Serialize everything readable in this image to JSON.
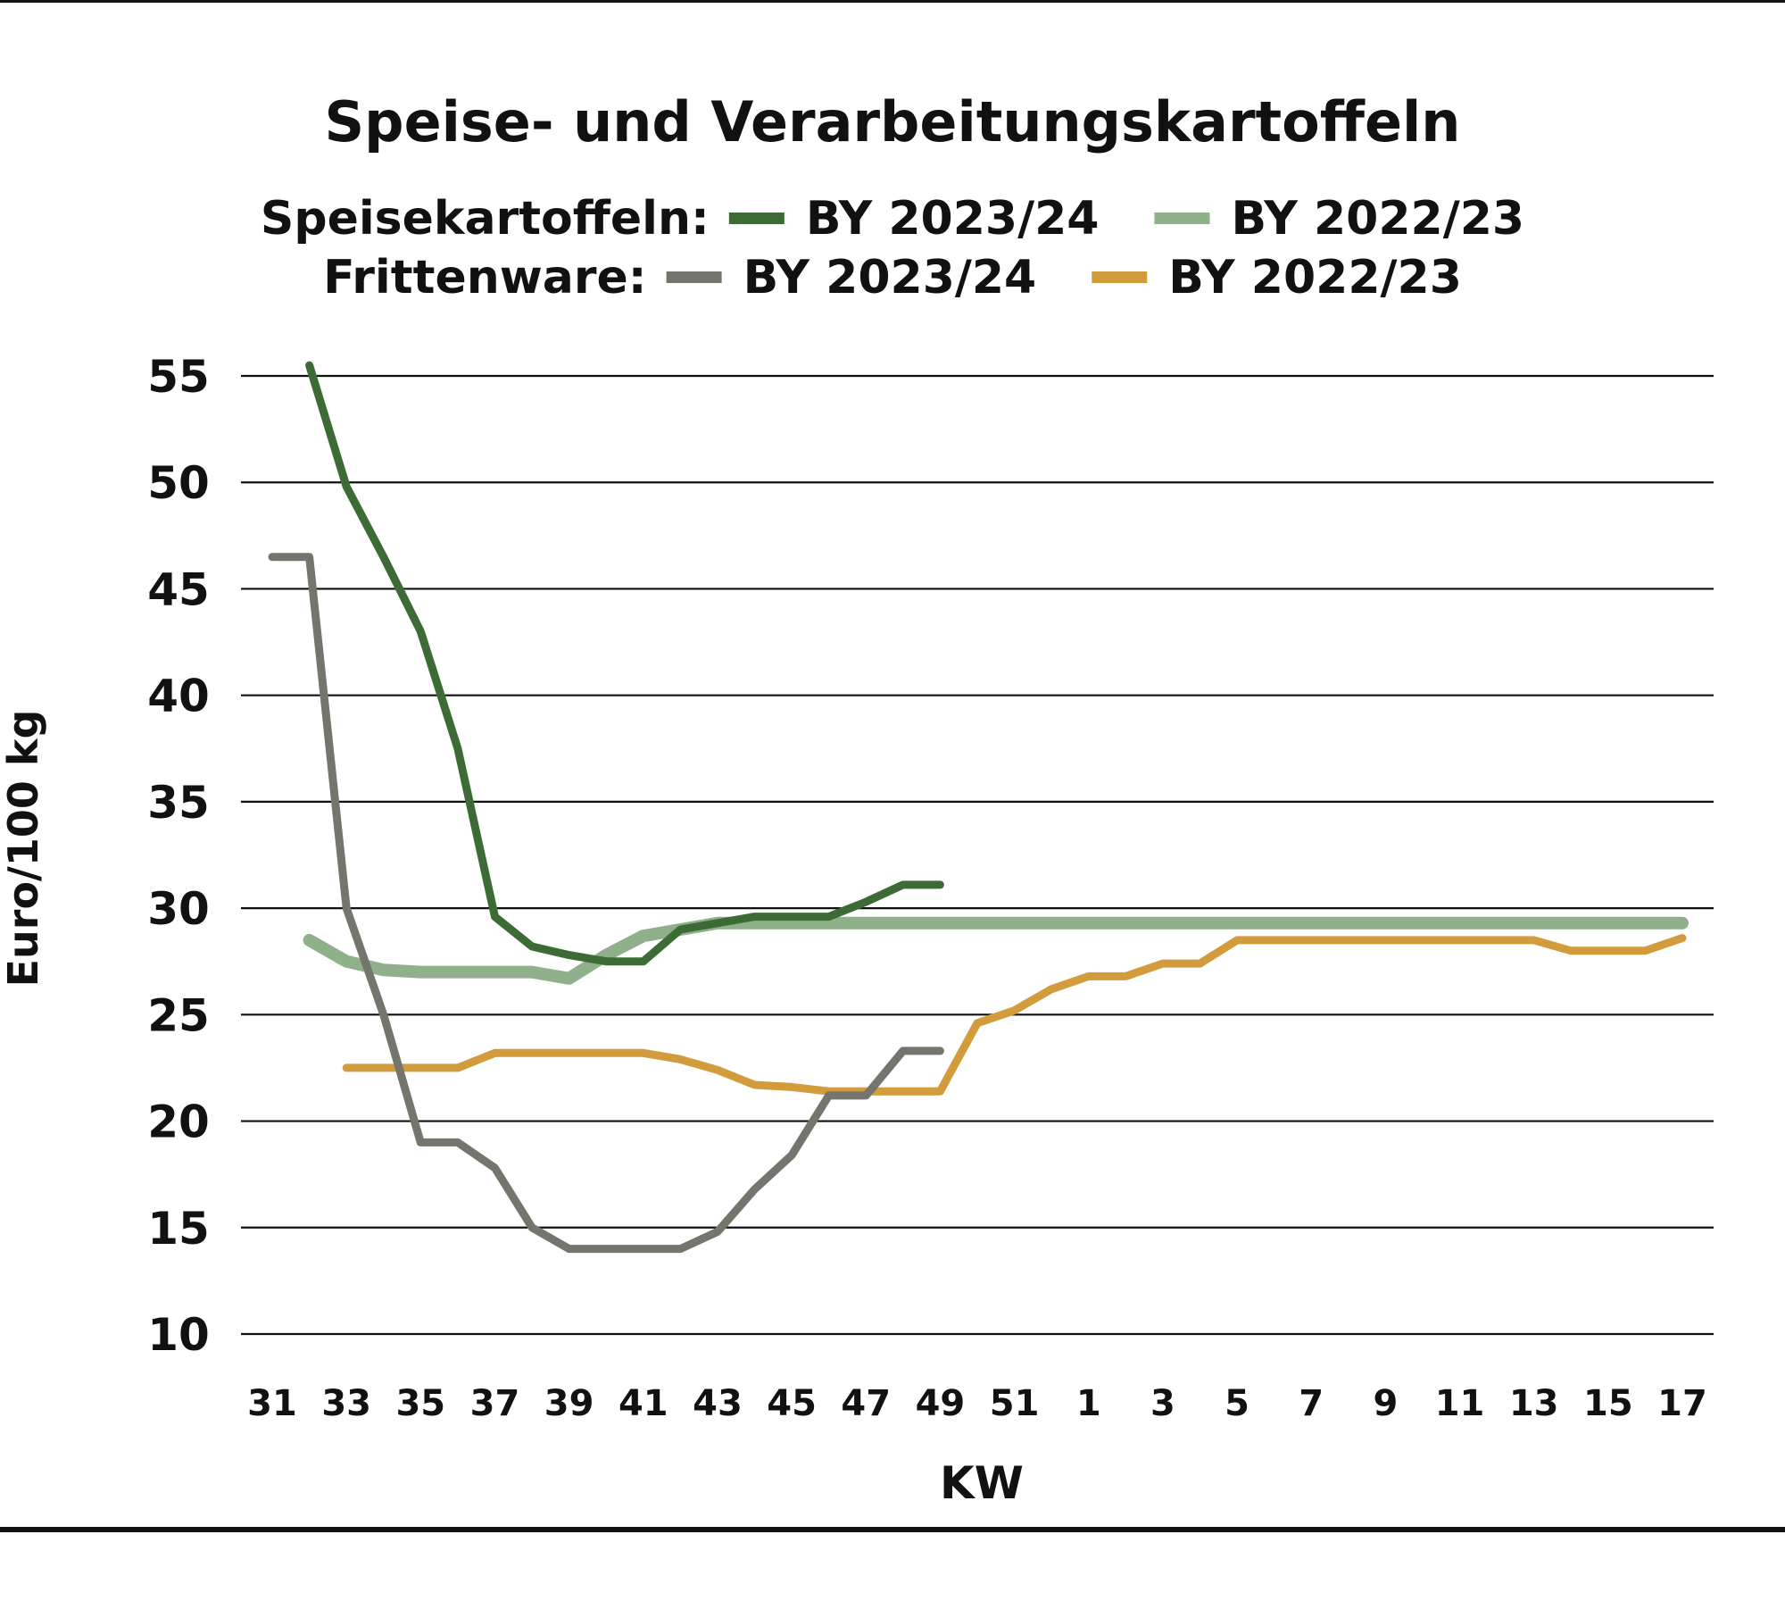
{
  "chart_data": {
    "type": "line",
    "title": "Speise- und Verarbeitungskartoffeln",
    "legend": {
      "placement": "top",
      "groups": [
        {
          "label": "Speisekartoffeln:",
          "entries": [
            {
              "series_index": 0,
              "name": "BY 2023/24"
            },
            {
              "series_index": 1,
              "name": "BY 2022/23"
            }
          ]
        },
        {
          "label": "Frittenware:",
          "entries": [
            {
              "series_index": 2,
              "name": "BY 2023/24"
            },
            {
              "series_index": 3,
              "name": "BY 2022/23"
            }
          ]
        }
      ]
    },
    "xlabel": "KW",
    "ylabel": "Euro/100 kg",
    "ylim": [
      10,
      55
    ],
    "yticks": [
      10,
      15,
      20,
      25,
      30,
      35,
      40,
      45,
      50,
      55
    ],
    "grid": "horizontal",
    "x": [
      "31",
      "32",
      "33",
      "34",
      "35",
      "36",
      "37",
      "38",
      "39",
      "40",
      "41",
      "42",
      "43",
      "44",
      "45",
      "46",
      "47",
      "48",
      "49",
      "50",
      "51",
      "52",
      "1",
      "2",
      "3",
      "4",
      "5",
      "6",
      "7",
      "8",
      "9",
      "10",
      "11",
      "12",
      "13",
      "14",
      "15",
      "16",
      "17"
    ],
    "xtick_labels": [
      "31",
      "33",
      "35",
      "37",
      "39",
      "41",
      "43",
      "45",
      "47",
      "49",
      "51",
      "1",
      "3",
      "5",
      "7",
      "9",
      "11",
      "13",
      "15",
      "17"
    ],
    "series": [
      {
        "name": "Speisekartoffeln BY 2023/24",
        "color": "#3d6b35",
        "values": [
          null,
          55.5,
          49.8,
          46.5,
          43.0,
          37.5,
          29.6,
          28.2,
          27.8,
          27.5,
          27.5,
          29.0,
          29.3,
          29.6,
          29.6,
          29.6,
          30.3,
          31.1,
          31.1,
          null,
          null,
          null,
          null,
          null,
          null,
          null,
          null,
          null,
          null,
          null,
          null,
          null,
          null,
          null,
          null,
          null,
          null,
          null,
          null
        ]
      },
      {
        "name": "Speisekartoffeln BY 2022/23",
        "color": "#8fb08a",
        "values": [
          null,
          28.5,
          27.5,
          27.1,
          27.0,
          27.0,
          27.0,
          27.0,
          26.7,
          27.8,
          28.7,
          29.0,
          29.3,
          29.3,
          29.3,
          29.3,
          29.3,
          29.3,
          29.3,
          29.3,
          29.3,
          29.3,
          29.3,
          29.3,
          29.3,
          29.3,
          29.3,
          29.3,
          29.3,
          29.3,
          29.3,
          29.3,
          29.3,
          29.3,
          29.3,
          29.3,
          29.3,
          29.3,
          29.3
        ]
      },
      {
        "name": "Frittenware BY 2023/24",
        "color": "#74756c",
        "values": [
          46.5,
          46.5,
          30.0,
          25.0,
          19.0,
          19.0,
          17.8,
          15.0,
          14.0,
          14.0,
          14.0,
          14.0,
          14.8,
          16.8,
          18.4,
          21.2,
          21.2,
          23.3,
          23.3,
          null,
          null,
          null,
          null,
          null,
          null,
          null,
          null,
          null,
          null,
          null,
          null,
          null,
          null,
          null,
          null,
          null,
          null,
          null,
          null
        ]
      },
      {
        "name": "Frittenware BY 2022/23",
        "color": "#d29b3c",
        "values": [
          null,
          null,
          22.5,
          22.5,
          22.5,
          22.5,
          23.2,
          23.2,
          23.2,
          23.2,
          23.2,
          22.9,
          22.4,
          21.7,
          21.6,
          21.4,
          21.4,
          21.4,
          21.4,
          24.6,
          25.2,
          26.2,
          26.8,
          26.8,
          27.4,
          27.4,
          28.5,
          28.5,
          28.5,
          28.5,
          28.5,
          28.5,
          28.5,
          28.5,
          28.5,
          28.0,
          28.0,
          28.0,
          28.6
        ]
      }
    ]
  }
}
